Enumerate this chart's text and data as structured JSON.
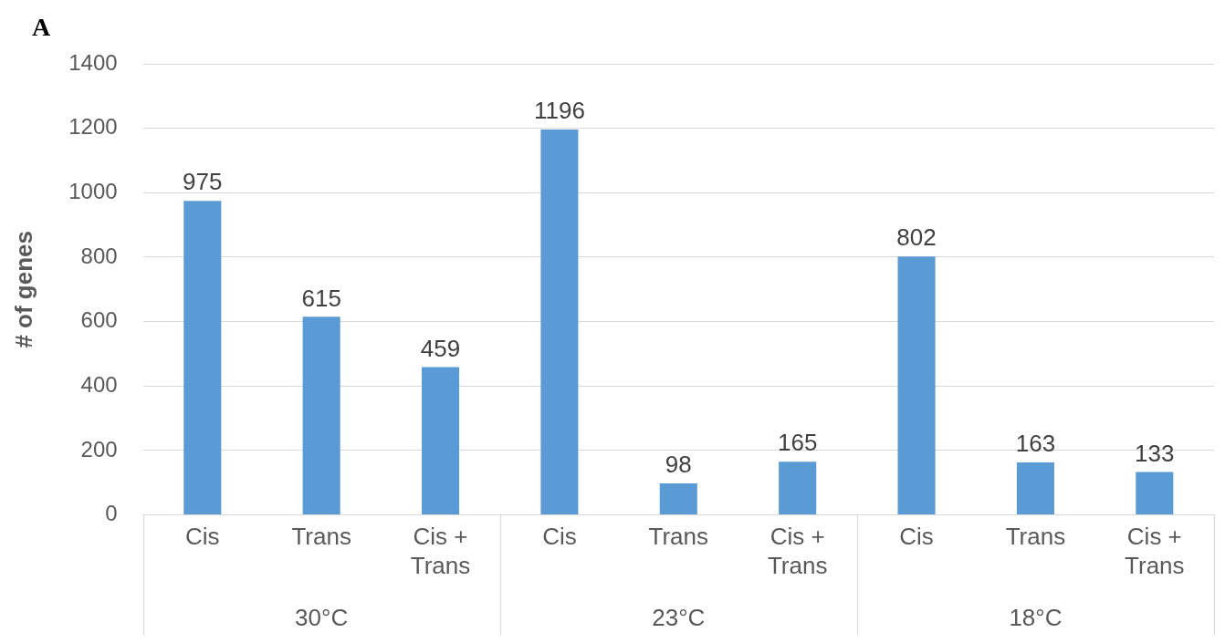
{
  "chart_data": {
    "type": "bar",
    "ylabel": "# of genes",
    "categories": [
      "Cis",
      "Trans",
      "Cis + Trans",
      "Cis",
      "Trans",
      "Cis + Trans",
      "Cis",
      "Trans",
      "Cis + Trans"
    ],
    "values": [
      975,
      615,
      459,
      1196,
      98,
      165,
      802,
      163,
      133
    ],
    "color": "#5b9bd5",
    "ylim": [
      0,
      1400
    ],
    "yticks": [
      0,
      200,
      400,
      600,
      800,
      1000,
      1200,
      1400
    ],
    "grid": "y",
    "legend": false,
    "data_labels": true,
    "annotations": [
      "A",
      "30°C",
      "23°C",
      "18°C"
    ]
  }
}
